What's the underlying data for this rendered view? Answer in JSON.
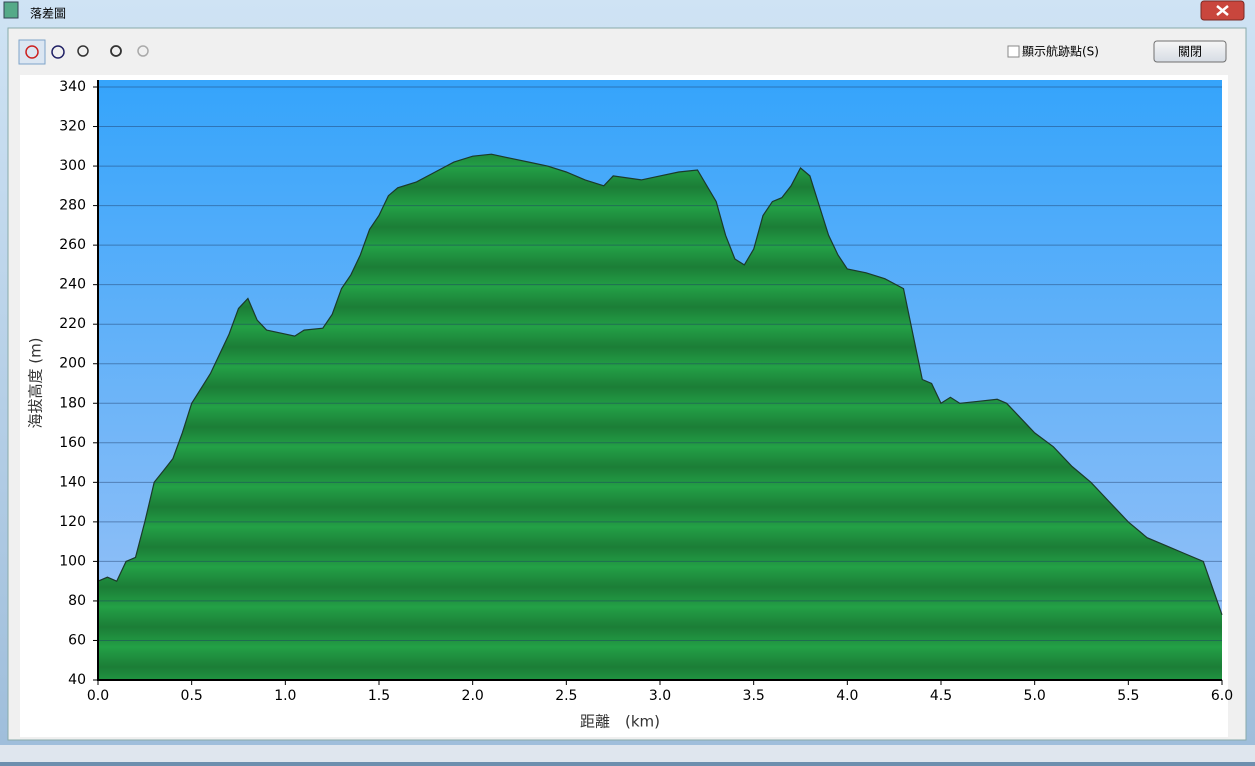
{
  "window": {
    "title": "落差圖",
    "checkbox_label": "顯示航跡點(S)",
    "close_button": "關閉"
  },
  "chart_data": {
    "type": "area",
    "xlabel": "距離　(km)",
    "ylabel": "海拔高度 (m)",
    "x": [
      0.0,
      0.05,
      0.1,
      0.15,
      0.2,
      0.25,
      0.3,
      0.35,
      0.4,
      0.45,
      0.5,
      0.6,
      0.7,
      0.75,
      0.8,
      0.85,
      0.9,
      1.0,
      1.05,
      1.1,
      1.2,
      1.25,
      1.3,
      1.35,
      1.4,
      1.45,
      1.5,
      1.55,
      1.6,
      1.7,
      1.8,
      1.9,
      2.0,
      2.1,
      2.2,
      2.3,
      2.4,
      2.5,
      2.6,
      2.7,
      2.75,
      2.9,
      3.0,
      3.1,
      3.2,
      3.3,
      3.35,
      3.4,
      3.45,
      3.5,
      3.55,
      3.6,
      3.65,
      3.7,
      3.75,
      3.8,
      3.85,
      3.9,
      3.95,
      4.0,
      4.1,
      4.2,
      4.3,
      4.35,
      4.4,
      4.45,
      4.5,
      4.55,
      4.6,
      4.7,
      4.8,
      4.85,
      4.9,
      5.0,
      5.1,
      5.2,
      5.3,
      5.4,
      5.5,
      5.6,
      5.7,
      5.8,
      5.9,
      6.0
    ],
    "values": [
      90,
      92,
      90,
      100,
      102,
      120,
      140,
      146,
      152,
      165,
      180,
      195,
      215,
      228,
      233,
      222,
      217,
      215,
      214,
      217,
      218,
      225,
      238,
      245,
      255,
      268,
      275,
      285,
      289,
      292,
      297,
      302,
      305,
      306,
      304,
      302,
      300,
      297,
      293,
      290,
      295,
      293,
      295,
      297,
      298,
      282,
      265,
      253,
      250,
      258,
      275,
      282,
      284,
      290,
      299,
      295,
      280,
      265,
      255,
      248,
      246,
      243,
      238,
      215,
      192,
      190,
      180,
      183,
      180,
      181,
      182,
      180,
      175,
      165,
      158,
      148,
      140,
      130,
      120,
      112,
      108,
      104,
      100,
      73
    ],
    "color": "#23a046",
    "xlim": [
      0,
      6
    ],
    "ylim": [
      40,
      340
    ],
    "xticks": [
      {
        "value": 0,
        "label": "0.0"
      },
      0.5,
      {
        "value": 1,
        "label": "1.0"
      },
      1.5,
      {
        "value": 2,
        "label": "2.0"
      },
      2.5,
      {
        "value": 3,
        "label": "3.0"
      },
      3.5,
      {
        "value": 4,
        "label": "4.0"
      },
      4.5,
      {
        "value": 5,
        "label": "5.0"
      },
      5.5,
      {
        "value": 6,
        "label": "6.0"
      }
    ],
    "yticks": [
      40,
      60,
      80,
      100,
      120,
      140,
      160,
      180,
      200,
      220,
      240,
      260,
      280,
      300,
      320,
      340
    ],
    "grid": true
  }
}
